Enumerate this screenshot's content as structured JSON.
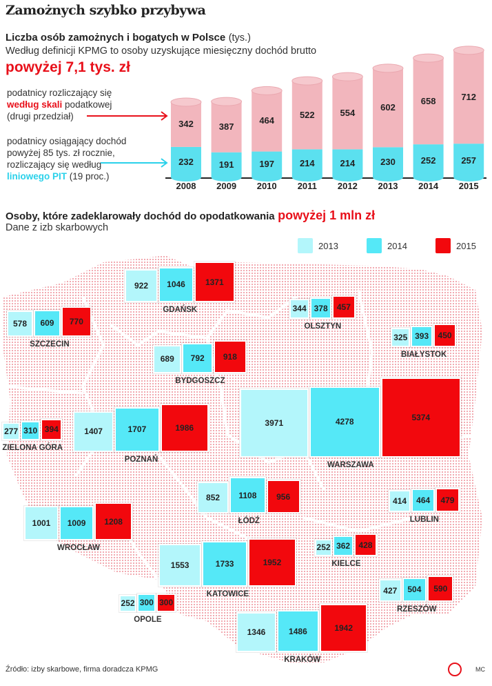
{
  "title": "Zamożnych szybko przybywa",
  "colors": {
    "c2013": "#b3f6fb",
    "c2014": "#55e8f7",
    "c2015": "#f2080d",
    "pink": "#f2b6bd",
    "cyan": "#5be0ef",
    "accent": "#e8101a"
  },
  "chart_data": [
    {
      "type": "bar",
      "stacked": true,
      "title": "Liczba osób zamożnych i bogatych w Polsce",
      "unit": "(tys.)",
      "subtitle": "Według definicji KPMG to osoby uzyskujące miesięczny dochód brutto",
      "subtitle_highlight": "powyżej 7,1 tys. zł",
      "categories": [
        "2008",
        "2009",
        "2010",
        "2011",
        "2012",
        "2013",
        "2014",
        "2015"
      ],
      "series": [
        {
          "name": "podatnicy osiągający dochód powyżej 85 tys. zł rocznie, rozliczający się według liniowego PIT (19 proc.)",
          "values": [
            232,
            191,
            197,
            214,
            214,
            230,
            252,
            257
          ]
        },
        {
          "name": "podatnicy rozliczający się według skali podatkowej (drugi przedział)",
          "values": [
            342,
            387,
            464,
            522,
            554,
            602,
            658,
            712
          ]
        }
      ],
      "annotations": {
        "scale_a": "podatnicy rozliczający się",
        "scale_b": "według skali",
        "scale_c": "podatkowej",
        "scale_d": "(drugi przedział)",
        "linear_a": "podatnicy osiągający dochód",
        "linear_b": "powyżej 85 tys. zł rocznie,",
        "linear_c": "rozliczający się według",
        "linear_d": "liniowego PIT",
        "linear_e": "(19 proc.)"
      }
    },
    {
      "type": "bar",
      "title": "Osoby, które zadeklarowały dochód do opodatkowania",
      "title_highlight": "powyżej 1 mln zł",
      "subtitle": "Dane z izb skarbowych",
      "legend": [
        "2013",
        "2014",
        "2015"
      ],
      "legend_placement": "top-right",
      "regions": [
        {
          "name": "GDAŃSK",
          "values": [
            922,
            1046,
            1371
          ]
        },
        {
          "name": "SZCZECIN",
          "values": [
            578,
            609,
            770
          ]
        },
        {
          "name": "OLSZTYN",
          "values": [
            344,
            378,
            457
          ]
        },
        {
          "name": "BIAŁYSTOK",
          "values": [
            325,
            393,
            450
          ]
        },
        {
          "name": "BYDGOSZCZ",
          "values": [
            689,
            792,
            918
          ]
        },
        {
          "name": "ZIELONA GÓRA",
          "values": [
            277,
            310,
            394
          ]
        },
        {
          "name": "POZNAŃ",
          "values": [
            1407,
            1707,
            1986
          ]
        },
        {
          "name": "WARSZAWA",
          "values": [
            3971,
            4278,
            5374
          ]
        },
        {
          "name": "ŁÓDŹ",
          "values": [
            852,
            1108,
            956
          ]
        },
        {
          "name": "LUBLIN",
          "values": [
            414,
            464,
            479
          ]
        },
        {
          "name": "WROCŁAW",
          "values": [
            1001,
            1009,
            1208
          ]
        },
        {
          "name": "KIELCE",
          "values": [
            252,
            362,
            428
          ]
        },
        {
          "name": "KATOWICE",
          "values": [
            1553,
            1733,
            1952
          ]
        },
        {
          "name": "RZESZÓW",
          "values": [
            427,
            504,
            590
          ]
        },
        {
          "name": "OPOLE",
          "values": [
            252,
            300,
            300
          ]
        },
        {
          "name": "KRAKÓW",
          "values": [
            1346,
            1486,
            1942
          ]
        }
      ]
    }
  ],
  "footer": {
    "source": "Źródło: izby skarbowe, firma doradcza KPMG",
    "credit": "MC"
  }
}
